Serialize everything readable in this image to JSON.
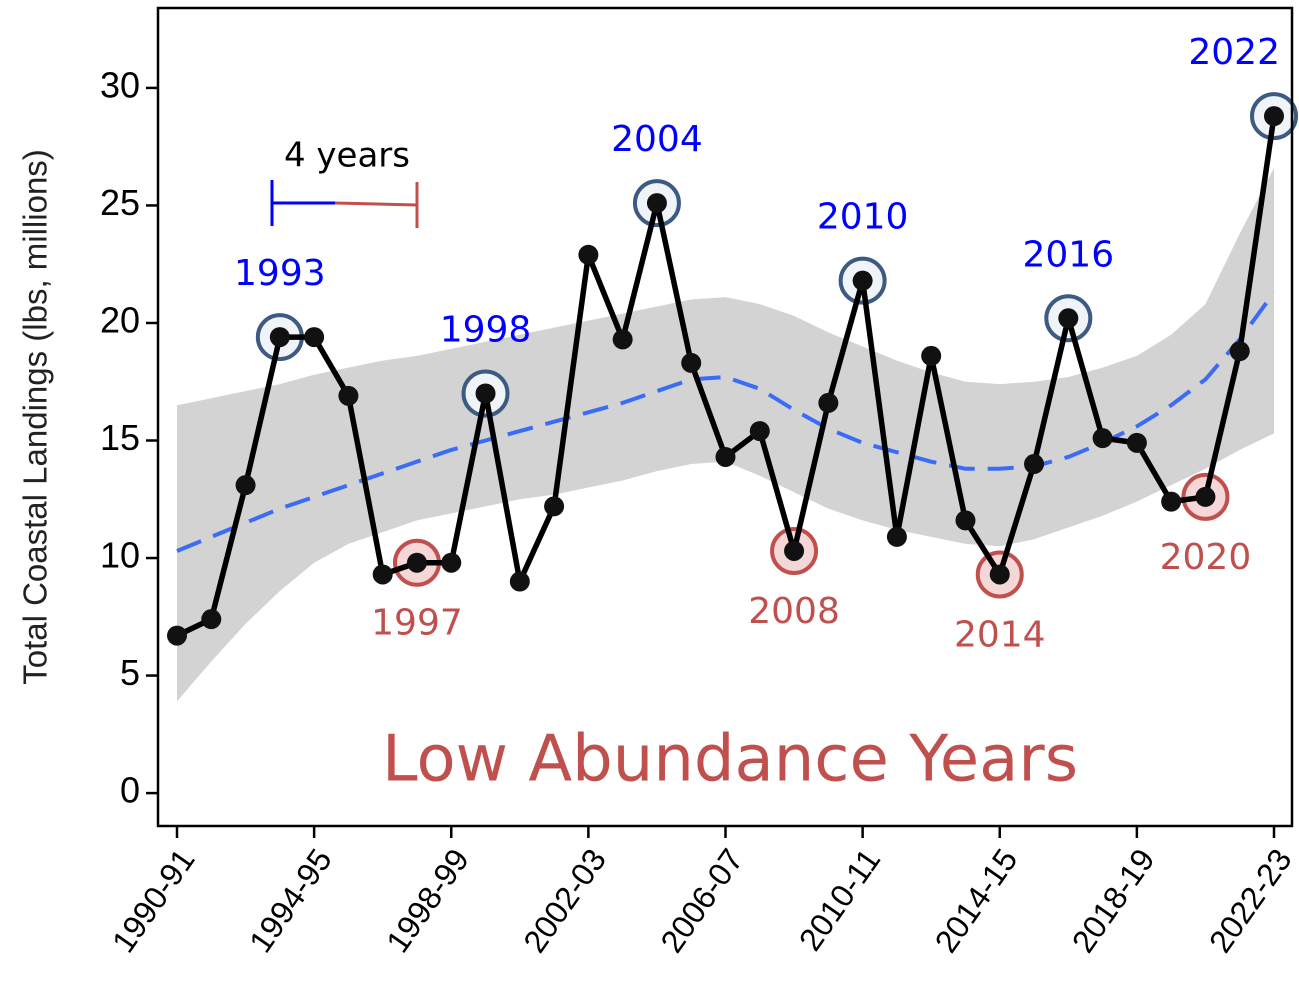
{
  "chart_data": {
    "type": "line",
    "y_label": "Total Coastal Landings (lbs, millions)",
    "categories": [
      "1990-91",
      null,
      null,
      null,
      "1994-95",
      null,
      null,
      null,
      "1998-99",
      null,
      null,
      null,
      "2002-03",
      null,
      null,
      null,
      "2006-07",
      null,
      null,
      null,
      "2010-11",
      null,
      null,
      null,
      "2014-15",
      null,
      null,
      null,
      "2018-19",
      null,
      null,
      null,
      "2022-23"
    ],
    "values": [
      6.7,
      7.4,
      13.1,
      19.4,
      19.4,
      16.9,
      9.3,
      9.8,
      9.8,
      17.0,
      9.0,
      12.2,
      22.9,
      19.3,
      25.1,
      18.3,
      14.3,
      15.4,
      10.3,
      16.6,
      21.8,
      10.9,
      18.6,
      11.6,
      9.3,
      14.0,
      20.2,
      15.1,
      14.9,
      12.4,
      12.6,
      18.8,
      28.8
    ],
    "color": "#000000",
    "trend": {
      "color": "#3b6cf5",
      "band_color": "#d3d3d3",
      "values": [
        10.3,
        10.9,
        11.5,
        12.1,
        12.6,
        13.1,
        13.6,
        14.1,
        14.6,
        15.0,
        15.4,
        15.8,
        16.2,
        16.6,
        17.1,
        17.6,
        17.7,
        17.2,
        16.3,
        15.5,
        14.9,
        14.5,
        14.1,
        13.8,
        13.8,
        13.9,
        14.3,
        14.9,
        15.6,
        16.5,
        17.6,
        19.3,
        21.3
      ],
      "upper": [
        16.5,
        16.8,
        17.1,
        17.4,
        17.8,
        18.1,
        18.4,
        18.6,
        18.9,
        19.2,
        19.5,
        19.8,
        20.1,
        20.4,
        20.7,
        21.0,
        21.1,
        20.8,
        20.3,
        19.6,
        19.0,
        18.4,
        17.9,
        17.5,
        17.4,
        17.5,
        17.7,
        18.1,
        18.6,
        19.5,
        20.8,
        23.8,
        26.6
      ],
      "lower": [
        3.9,
        5.6,
        7.2,
        8.6,
        9.8,
        10.6,
        11.1,
        11.6,
        11.9,
        12.2,
        12.5,
        12.7,
        13.0,
        13.3,
        13.7,
        14.0,
        14.1,
        13.5,
        12.8,
        12.1,
        11.6,
        11.2,
        10.9,
        10.6,
        10.5,
        10.8,
        11.3,
        11.8,
        12.4,
        13.1,
        13.8,
        14.6,
        15.3
      ]
    },
    "ylim": [
      -1.4,
      33.4
    ],
    "yticks": [
      0,
      5,
      10,
      15,
      20,
      25,
      30
    ],
    "highlights": {
      "high": {
        "color": "#0000ff",
        "ring": "#3d5a80",
        "points": [
          {
            "label": "1993",
            "at": 3
          },
          {
            "label": "1998",
            "at": 9
          },
          {
            "label": "2004",
            "at": 14
          },
          {
            "label": "2010",
            "at": 20
          },
          {
            "label": "2016",
            "at": 26
          },
          {
            "label": "2022",
            "at": 32
          }
        ]
      },
      "low": {
        "color": "#c0504d",
        "ring": "#c0504d",
        "points": [
          {
            "label": "1997",
            "at": 7
          },
          {
            "label": "2008",
            "at": 18
          },
          {
            "label": "2014",
            "at": 24
          },
          {
            "label": "2020",
            "at": 30
          }
        ]
      }
    },
    "span_label": "4 years",
    "caption": "Low Abundance Years"
  }
}
